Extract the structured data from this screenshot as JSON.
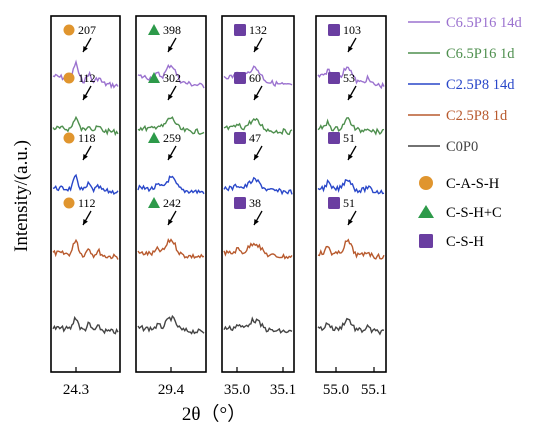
{
  "chart_data": {
    "type": "line",
    "ylabel": "Intensity/(a.u.)",
    "xlabel": "2θ（°）",
    "panels": [
      {
        "ticks": [
          "24.3"
        ]
      },
      {
        "ticks": [
          "29.4"
        ]
      },
      {
        "ticks": [
          "35.0",
          "35.1"
        ]
      },
      {
        "ticks": [
          "55.0",
          "55.1"
        ]
      }
    ],
    "series": [
      {
        "name": "C6.5P16 14d",
        "color": "#9b72cf"
      },
      {
        "name": "C6.5P16 1d",
        "color": "#4e8f4e"
      },
      {
        "name": "C2.5P8 14d",
        "color": "#2947c9"
      },
      {
        "name": "C2.5P8 1d",
        "color": "#b85a2e"
      },
      {
        "name": "C0P0",
        "color": "#444444"
      }
    ],
    "phases": [
      {
        "name": "C-A-S-H",
        "marker": "circle",
        "color": "#e0952e"
      },
      {
        "name": "C-S-H+C",
        "marker": "triangle",
        "color": "#2d9a4a"
      },
      {
        "name": "C-S-H",
        "marker": "square",
        "color": "#6a3ea1"
      }
    ],
    "peak_labels": [
      [
        "207",
        "112",
        "118",
        "112"
      ],
      [
        "398",
        "302",
        "259",
        "242"
      ],
      [
        "132",
        "60",
        "47",
        "38"
      ],
      [
        "103",
        "53",
        "51",
        "51"
      ]
    ]
  }
}
